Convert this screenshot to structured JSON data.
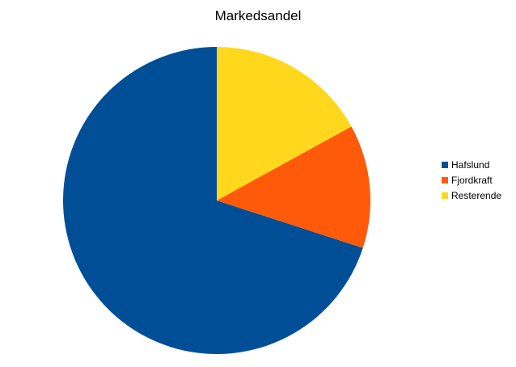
{
  "chart_data": {
    "type": "pie",
    "title": "Markedsandel",
    "categories": [
      "Hafslund",
      "Fjordkraft",
      "Resterende"
    ],
    "values": [
      70,
      13,
      17
    ],
    "colors": [
      "#004f96",
      "#ff5a0a",
      "#ffd81e"
    ],
    "start_angle_deg": 0,
    "direction": "counterclockwise",
    "legend_position": "right"
  }
}
